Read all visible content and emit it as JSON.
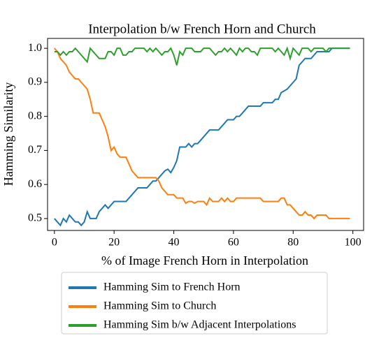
{
  "chart_data": {
    "type": "line",
    "title": "Interpolation b/w French Horn and Church",
    "x_label": "% of Image French Horn in Interpolation",
    "y_label": "Hamming Similarity",
    "x": [
      0,
      1,
      2,
      3,
      4,
      5,
      6,
      7,
      8,
      9,
      10,
      11,
      12,
      13,
      14,
      15,
      16,
      17,
      18,
      19,
      20,
      21,
      22,
      23,
      24,
      25,
      26,
      27,
      28,
      29,
      30,
      31,
      32,
      33,
      34,
      35,
      36,
      37,
      38,
      39,
      40,
      41,
      42,
      43,
      44,
      45,
      46,
      47,
      48,
      49,
      50,
      51,
      52,
      53,
      54,
      55,
      56,
      57,
      58,
      59,
      60,
      61,
      62,
      63,
      64,
      65,
      66,
      67,
      68,
      69,
      70,
      71,
      72,
      73,
      74,
      75,
      76,
      77,
      78,
      79,
      80,
      81,
      82,
      83,
      84,
      85,
      86,
      87,
      88,
      89,
      90,
      91,
      92,
      93,
      94,
      95,
      96,
      97,
      98,
      99
    ],
    "series": [
      {
        "name": "Hamming Sim to French Horn",
        "color": "#1f77b4",
        "values": [
          0.5,
          0.49,
          0.48,
          0.5,
          0.49,
          0.51,
          0.5,
          0.49,
          0.49,
          0.48,
          0.49,
          0.52,
          0.5,
          0.5,
          0.5,
          0.52,
          0.53,
          0.54,
          0.53,
          0.54,
          0.55,
          0.55,
          0.55,
          0.55,
          0.55,
          0.56,
          0.57,
          0.58,
          0.59,
          0.59,
          0.59,
          0.59,
          0.6,
          0.61,
          0.61,
          0.62,
          0.63,
          0.64,
          0.645,
          0.635,
          0.65,
          0.67,
          0.71,
          0.71,
          0.71,
          0.72,
          0.71,
          0.72,
          0.72,
          0.73,
          0.74,
          0.75,
          0.76,
          0.76,
          0.76,
          0.76,
          0.77,
          0.78,
          0.79,
          0.79,
          0.79,
          0.8,
          0.8,
          0.81,
          0.82,
          0.83,
          0.83,
          0.83,
          0.83,
          0.83,
          0.84,
          0.84,
          0.84,
          0.84,
          0.85,
          0.85,
          0.87,
          0.875,
          0.88,
          0.89,
          0.9,
          0.91,
          0.95,
          0.96,
          0.97,
          0.97,
          0.97,
          0.98,
          0.99,
          0.99,
          0.99,
          0.99,
          0.99,
          1.0,
          1.0,
          1.0,
          1.0,
          1.0,
          1.0,
          1.0
        ]
      },
      {
        "name": "Hamming Sim to Church",
        "color": "#ff7f0e",
        "values": [
          1.0,
          0.99,
          0.97,
          0.96,
          0.95,
          0.93,
          0.92,
          0.91,
          0.91,
          0.9,
          0.89,
          0.88,
          0.85,
          0.81,
          0.81,
          0.81,
          0.79,
          0.77,
          0.74,
          0.7,
          0.71,
          0.69,
          0.68,
          0.68,
          0.68,
          0.66,
          0.64,
          0.63,
          0.62,
          0.62,
          0.62,
          0.62,
          0.62,
          0.62,
          0.62,
          0.61,
          0.59,
          0.58,
          0.57,
          0.57,
          0.57,
          0.56,
          0.56,
          0.56,
          0.545,
          0.55,
          0.55,
          0.545,
          0.55,
          0.55,
          0.55,
          0.54,
          0.56,
          0.55,
          0.55,
          0.55,
          0.56,
          0.55,
          0.56,
          0.55,
          0.55,
          0.56,
          0.56,
          0.56,
          0.56,
          0.56,
          0.56,
          0.56,
          0.56,
          0.56,
          0.55,
          0.55,
          0.55,
          0.55,
          0.55,
          0.55,
          0.56,
          0.56,
          0.54,
          0.54,
          0.53,
          0.52,
          0.51,
          0.51,
          0.52,
          0.51,
          0.51,
          0.5,
          0.51,
          0.51,
          0.51,
          0.51,
          0.5,
          0.5,
          0.5,
          0.5,
          0.5,
          0.5,
          0.5,
          0.5
        ]
      },
      {
        "name": "Hamming Sim b/w Adjacent Interpolations",
        "color": "#2ca02c",
        "values": [
          0.99,
          0.99,
          0.98,
          0.99,
          0.98,
          0.99,
          0.99,
          1.0,
          0.99,
          0.98,
          0.97,
          0.96,
          1.0,
          0.99,
          0.98,
          0.97,
          0.97,
          0.97,
          0.99,
          0.99,
          0.98,
          1.0,
          1.0,
          0.98,
          0.98,
          0.99,
          0.99,
          1.0,
          1.0,
          1.0,
          1.0,
          0.99,
          1.0,
          0.99,
          1.0,
          0.99,
          0.98,
          0.99,
          0.99,
          1.0,
          0.98,
          0.95,
          0.99,
          0.98,
          1.0,
          1.0,
          1.0,
          0.99,
          0.99,
          0.99,
          1.0,
          1.0,
          1.0,
          0.99,
          0.98,
          0.99,
          0.99,
          1.0,
          0.99,
          1.0,
          0.99,
          0.98,
          1.0,
          0.99,
          1.0,
          1.0,
          0.99,
          0.99,
          0.98,
          1.0,
          1.0,
          1.0,
          1.0,
          1.0,
          0.99,
          1.0,
          0.99,
          0.98,
          1.0,
          0.97,
          1.0,
          0.99,
          0.98,
          1.0,
          1.0,
          1.0,
          0.99,
          1.0,
          1.0,
          1.0,
          1.0,
          0.99,
          1.0,
          1.0,
          1.0,
          1.0,
          1.0,
          1.0,
          1.0,
          1.0
        ]
      }
    ],
    "xlim": [
      -2.3,
      103.6
    ],
    "ylim": [
      0.465,
      1.029
    ],
    "xticks": [
      0,
      20,
      40,
      60,
      80,
      100
    ],
    "yticks": [
      0.5,
      0.6,
      0.7,
      0.8,
      0.9,
      {
        "value": 1.0,
        "label": "1.0"
      }
    ],
    "grid": false,
    "legend": "below"
  }
}
